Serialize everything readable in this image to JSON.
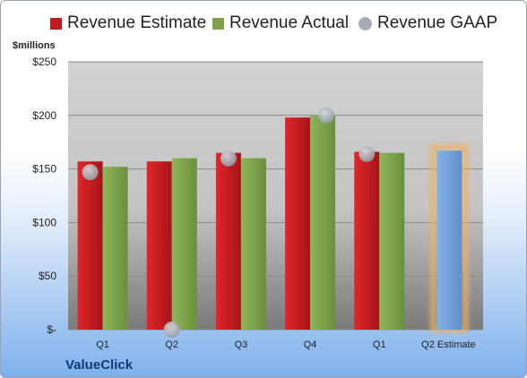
{
  "chart_data": {
    "type": "bar",
    "unit_label": "$millions",
    "company": "ValueClick",
    "categories": [
      "Q1",
      "Q2",
      "Q3",
      "Q4",
      "Q1",
      "Q2 Estimate"
    ],
    "ylim": [
      0,
      250
    ],
    "y_ticks": [
      0,
      50,
      100,
      150,
      200,
      250
    ],
    "y_tick_labels": [
      "$-",
      "$50",
      "$100",
      "$150",
      "$200",
      "$250"
    ],
    "grid": true,
    "legend_position": "top",
    "series": [
      {
        "name": "Revenue Estimate",
        "type": "bar",
        "color": "#c0191e",
        "values": [
          157,
          157,
          165,
          198,
          166,
          null
        ]
      },
      {
        "name": "Revenue Actual",
        "type": "bar",
        "color": "#7ea24a",
        "values": [
          152,
          160,
          160,
          200,
          165,
          167
        ]
      },
      {
        "name": "Revenue GAAP",
        "type": "marker",
        "color": "#a7acb5",
        "values": [
          147,
          0,
          160,
          200,
          164,
          null
        ]
      }
    ],
    "highlight": {
      "category": "Q2 Estimate",
      "color": "#6e9fd6",
      "glow": "#f0b160"
    }
  }
}
